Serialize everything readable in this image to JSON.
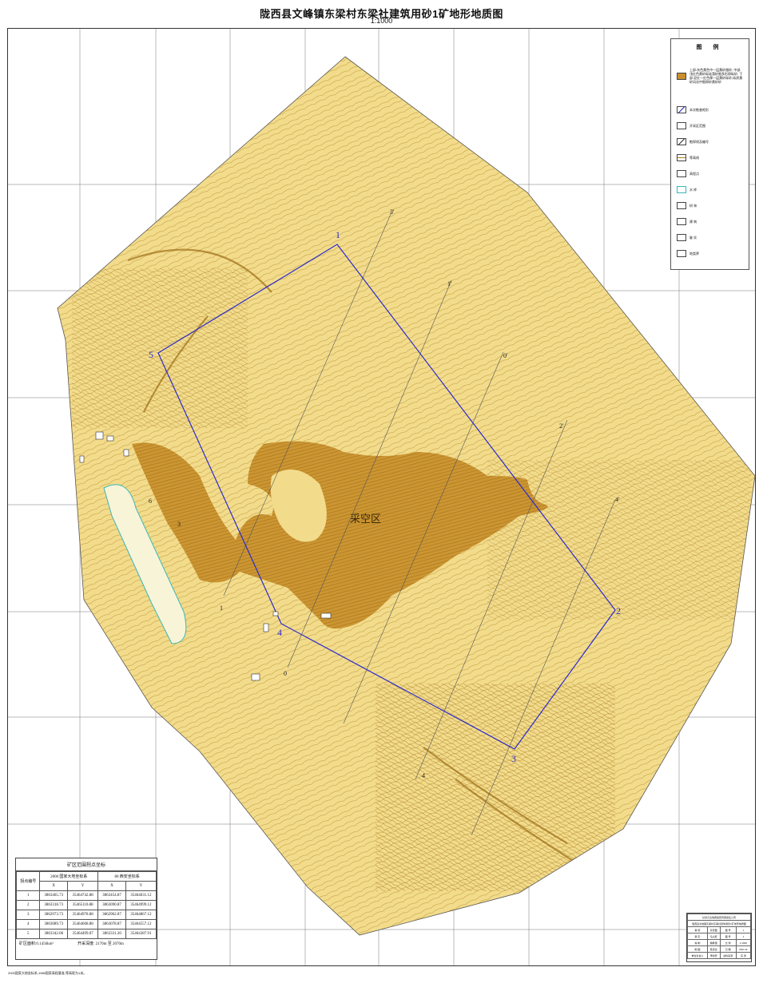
{
  "map": {
    "title": "陇西县文峰镇东梁村东梁社建筑用砂1矿地形地质图",
    "scale": "1:1000",
    "mined_area_label": "采空区",
    "boundary_points": [
      "1",
      "2",
      "3",
      "4",
      "5"
    ],
    "profile_labels": [
      "1'",
      "2'",
      "3'",
      "4'",
      "0'",
      "0",
      "1",
      "3",
      "4",
      "6"
    ],
    "colors": {
      "terrain_fill": "#f2dc8c",
      "contour": "#b07d1c",
      "mined_fill": "#c98f2a",
      "boundary": "#2b2bcc",
      "pond": "#3bb6b6"
    }
  },
  "legend": {
    "title": "图 例",
    "items": [
      {
        "label": "上部:灰色黄色中一层黄砂细砂; 中部:浅红色黄砂砾硅藻砂细多形卵砾砂; 下部:泥红一红色厚一层黄砂砾砂,砾质黄砂风化中细卵砂黄砂砂"
      },
      {
        "label": "本次勘查矩形"
      },
      {
        "label": "开采区范围"
      },
      {
        "label": "勘探线及编号"
      },
      {
        "label": "等高线"
      },
      {
        "label": "高程点"
      },
      {
        "label": "水 库"
      },
      {
        "label": "树 林"
      },
      {
        "label": "建 筑"
      },
      {
        "label": "陡 坎"
      },
      {
        "label": "地类界"
      }
    ]
  },
  "coord_table": {
    "caption": "矿区范围拐点坐标",
    "head_point": "拐点编号",
    "system_a": "2000 国家大地坐标系",
    "system_b": "80 西安坐标系",
    "x": "X",
    "y": "Y",
    "rows": [
      [
        "1",
        "3863465.73",
        "35464742.88",
        "3863454.87",
        "35464631.12"
      ],
      [
        "2",
        "3863318.73",
        "35465110.88",
        "3863090.87",
        "35464999.12"
      ],
      [
        "3",
        "3862973.73",
        "35464978.88",
        "3862962.87",
        "35464867.12"
      ],
      [
        "4",
        "3863089.73",
        "35464668.88",
        "3863078.87",
        "35464557.12"
      ],
      [
        "5",
        "3863342.06",
        "35464499.07",
        "3863331.20",
        "35464387.91"
      ]
    ],
    "area_label": "矿区面积:0.1456km²",
    "elev_label": "开采深度: 2170m 至 2070m"
  },
  "title_block": {
    "rows": [
      [
        "甘肃元达地质勘查有限责任公司"
      ],
      [
        "陇西县文峰镇东梁村东梁社建筑用砂1矿地形地质图"
      ],
      [
        "审 核",
        "孙宏图",
        "图 号",
        "1"
      ],
      [
        "审 定",
        "马兴旺",
        "图 号",
        "1"
      ],
      [
        "编 制",
        "魏鹏国",
        "比 例",
        "1:1000"
      ],
      [
        "制 图",
        "陈宗龙",
        "日 期",
        "2021.11"
      ],
      [
        "单位负责人",
        "李树安",
        "资料来源",
        "实 测"
      ]
    ]
  },
  "footnote": "2000国家大地坐标系,1985国家高程基准,等高距为1米。"
}
